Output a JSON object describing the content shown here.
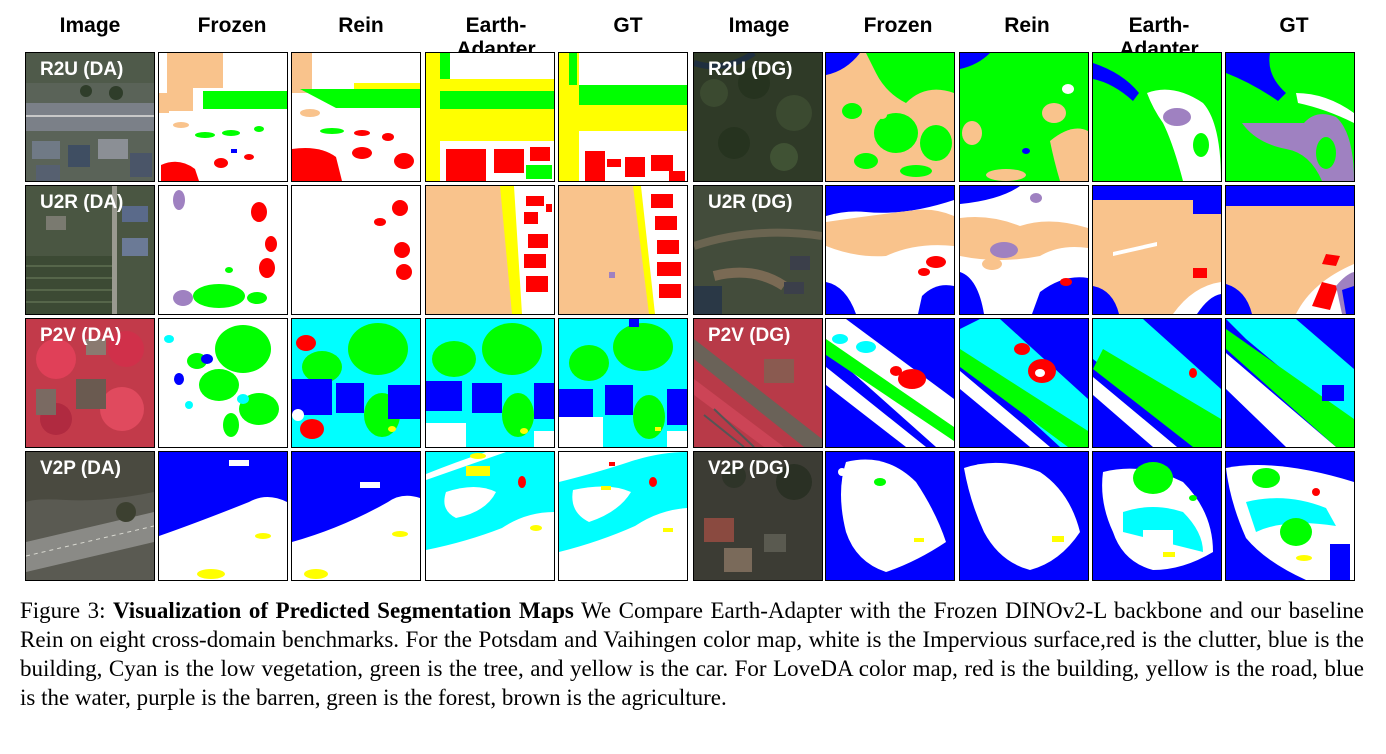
{
  "headers": [
    "Image",
    "Frozen",
    "Rein",
    "Earth-Adapter",
    "GT",
    "Image",
    "Frozen",
    "Rein",
    "Earth-Adapter",
    "GT"
  ],
  "rows": [
    {
      "left_label": "R2U (DA)",
      "right_label": "R2U (DG)"
    },
    {
      "left_label": "U2R (DA)",
      "right_label": "U2R (DG)"
    },
    {
      "left_label": "P2V (DA)",
      "right_label": "P2V (DG)"
    },
    {
      "left_label": "V2P (DA)",
      "right_label": "V2P (DG)"
    }
  ],
  "caption": {
    "prefix": "Figure 3: ",
    "bold_title": "Visualization of Predicted Segmentation Maps",
    "body": " We Compare Earth-Adapter with the Frozen DINOv2-L backbone and our baseline Rein on eight cross-domain benchmarks. For the Potsdam and Vaihingen color map, white is the Impervious surface,red is the clutter, blue is the building, Cyan is the low vegetation, green is the tree, and yellow is the car. For LoveDA color map, red is the building, yellow is the road, blue is the water, purple is the barren, green is the forest, brown is the agriculture."
  },
  "colors": {
    "impervious": "#ffffff",
    "clutter": "#ff0000",
    "building_pv": "#0000ff",
    "low_veg": "#00ffff",
    "tree": "#00ff00",
    "car": "#ffff00",
    "building_loveda": "#ff0000",
    "road": "#ffff00",
    "water": "#0000ff",
    "barren": "#9f81c1",
    "forest": "#00ff00",
    "agriculture": "#f9c38c"
  }
}
